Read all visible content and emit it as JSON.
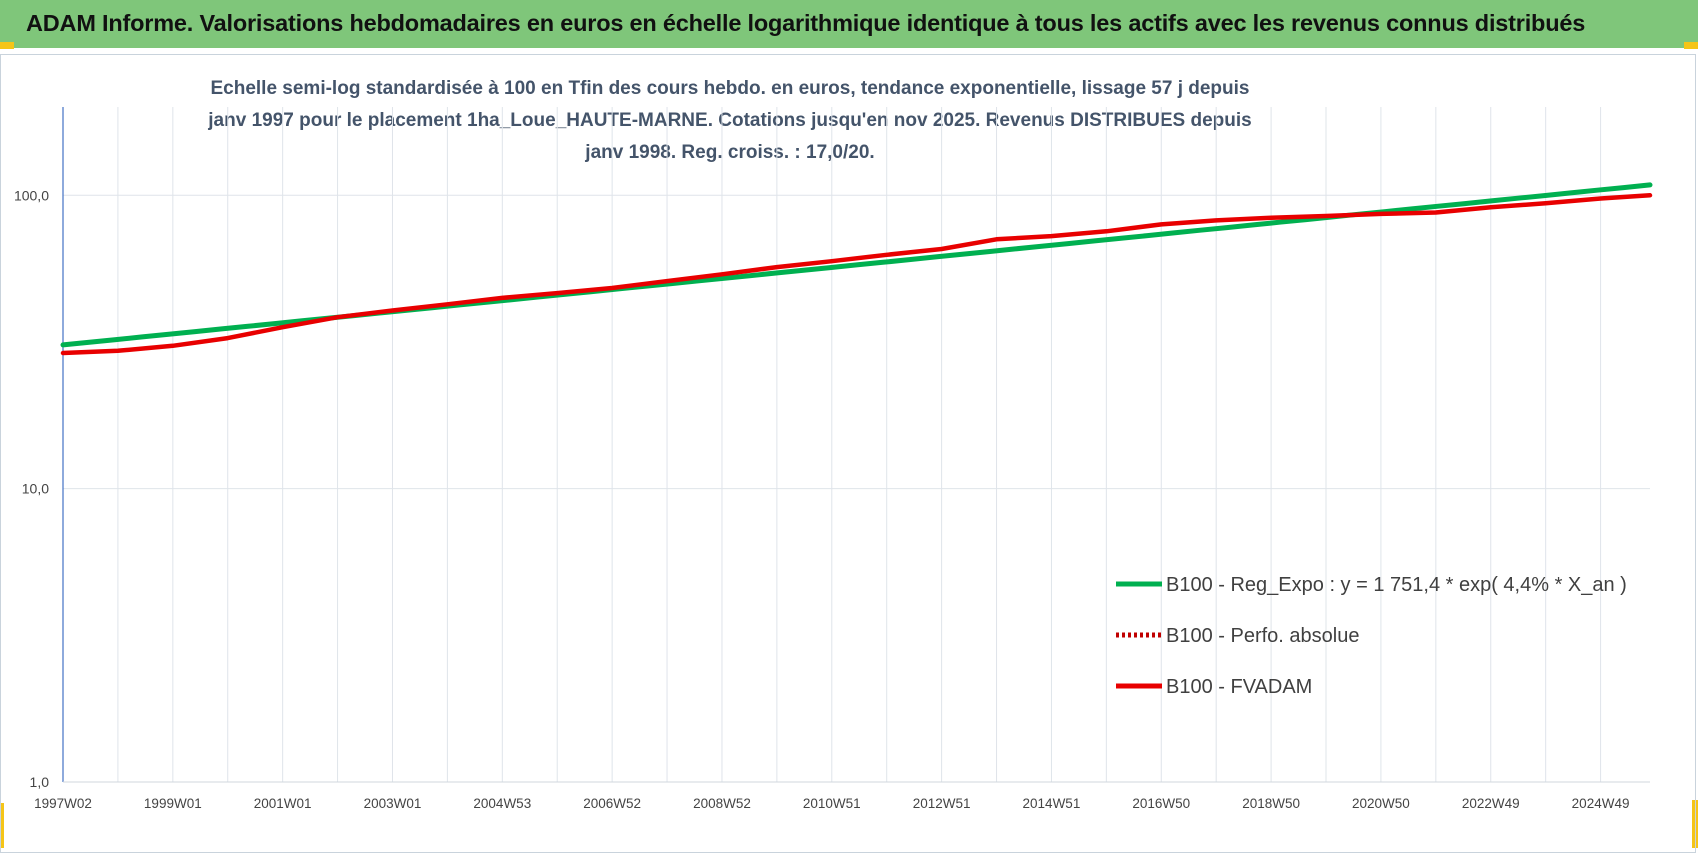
{
  "header": {
    "title": "ADAM Informe. Valorisations hebdomadaires en euros en échelle logarithmique identique à tous les actifs avec les revenus connus distribués"
  },
  "colors": {
    "header_bg": "#7fc67a",
    "corner_accent": "#f5c518",
    "reg_expo": "#00b050",
    "perfo_absolue": "#c00000",
    "fvadam": "#e80000",
    "axis": "#4472c4",
    "grid": "#dfe4ea"
  },
  "chart_data": {
    "type": "line",
    "title": "Echelle semi-log standardisée à 100 en Tfin des cours hebdo. en euros, tendance exponentielle, lissage 57 j depuis janv 1997 pour le placement 1ha_Loue_HAUTE-MARNE. Cotations jusqu'en nov 2025.  Revenus DISTRIBUES depuis janv 1998. Reg. croiss. : 17,0/20.",
    "y_scale": "log",
    "ylim": [
      1,
      200
    ],
    "y_ticks": [
      "1,0",
      "10,0",
      "100,0"
    ],
    "y_tick_values": [
      1,
      10,
      100
    ],
    "x_ticks": [
      "1997W02",
      "1999W01",
      "2001W01",
      "2003W01",
      "2004W53",
      "2006W52",
      "2008W52",
      "2010W51",
      "2012W51",
      "2014W51",
      "2016W50",
      "2018W50",
      "2020W50",
      "2022W49",
      "2024W49"
    ],
    "x_range_years": [
      1997.0,
      2025.9
    ],
    "grid": "vertical and horizontal",
    "legend_placement": "bottom-right",
    "series": [
      {
        "name": "B100 - Reg_Expo : y = 1 751,4 * exp( 4,4% *  X_an )",
        "style": "solid",
        "x": [
          1997.0,
          2025.9
        ],
        "values": [
          30.9,
          108.5
        ]
      },
      {
        "name": "B100 - Perfo. absolue",
        "style": "dotted",
        "x": [],
        "values": []
      },
      {
        "name": "B100 - FVADAM",
        "style": "solid-thick",
        "x": [
          1997.0,
          1998.0,
          1999.0,
          2000.0,
          2001.0,
          2002.0,
          2003.0,
          2004.0,
          2005.0,
          2006.0,
          2007.0,
          2008.0,
          2009.0,
          2010.0,
          2011.0,
          2012.0,
          2013.0,
          2014.0,
          2015.0,
          2016.0,
          2017.0,
          2018.0,
          2019.0,
          2020.0,
          2021.0,
          2022.0,
          2023.0,
          2024.0,
          2025.0,
          2025.9
        ],
        "values": [
          29.0,
          29.5,
          30.7,
          32.6,
          35.5,
          38.4,
          40.5,
          42.5,
          44.7,
          46.4,
          48.3,
          51.0,
          53.8,
          56.9,
          59.6,
          62.7,
          65.6,
          70.8,
          72.6,
          75.4,
          79.6,
          82.1,
          83.8,
          85.0,
          86.4,
          87.4,
          91.1,
          93.9,
          97.5,
          100.0
        ]
      }
    ]
  }
}
